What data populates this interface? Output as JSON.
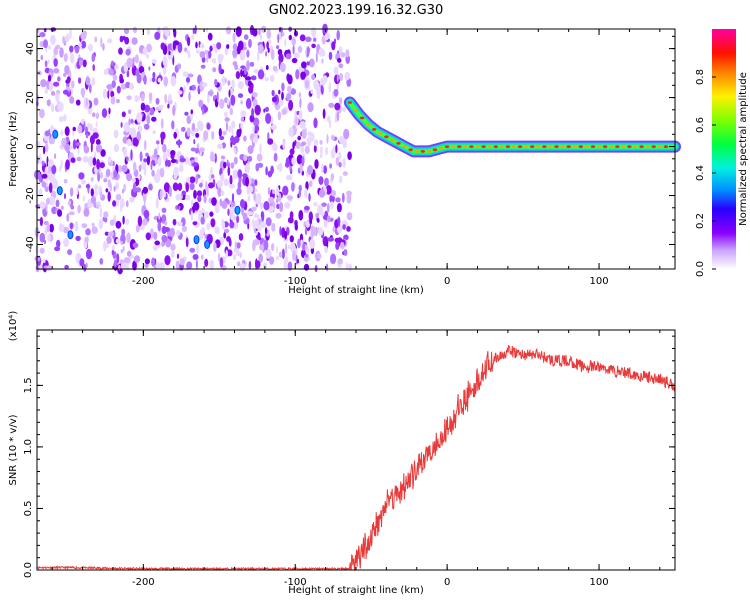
{
  "figure_title": "GN02.2023.199.16.32.G30",
  "chart_data": [
    {
      "type": "heatmap",
      "title": "GN02.2023.199.16.32.G30",
      "xlabel": "Height of straight line (km)",
      "ylabel": "Frequency (Hz)",
      "xlim": [
        -270,
        150
      ],
      "ylim": [
        -50,
        48
      ],
      "x_ticks": [
        -200,
        -100,
        0,
        100
      ],
      "y_ticks": [
        -40,
        -20,
        0,
        20,
        40
      ],
      "colorbar": {
        "label": "Normalized spectral amplitude",
        "range": [
          0,
          1
        ],
        "ticks": [
          0.0,
          0.2,
          0.4,
          0.6,
          0.8
        ]
      },
      "noise_region_x": [
        -270,
        -64
      ],
      "signal_track": {
        "x": [
          -64,
          -58,
          -52,
          -46,
          -40,
          -34,
          -28,
          -22,
          -18,
          -12,
          -6,
          0,
          20,
          40,
          60,
          80,
          100,
          120,
          150
        ],
        "y": [
          18,
          13,
          9,
          6,
          4,
          2,
          0,
          -2,
          -2,
          -2,
          -1,
          0,
          0,
          0,
          0,
          0,
          0,
          0,
          0
        ]
      },
      "grid": false
    },
    {
      "type": "line",
      "xlabel": "Height of straight line (km)",
      "ylabel": "SNR (10 * v/v)",
      "y_multiplier": "(x10⁴)",
      "xlim": [
        -270,
        150
      ],
      "ylim": [
        0,
        1.95
      ],
      "x_ticks": [
        -200,
        -100,
        0,
        100
      ],
      "y_ticks": [
        "0.0",
        "0.5",
        "1.0",
        "1.5"
      ],
      "series": [
        {
          "color": "#e83a3a",
          "x": [
            -270,
            -250,
            -200,
            -150,
            -100,
            -64,
            -55,
            -45,
            -40,
            -30,
            -20,
            -10,
            0,
            10,
            20,
            30,
            40,
            50,
            60,
            70,
            80,
            90,
            100,
            110,
            120,
            130,
            140,
            150
          ],
          "y": [
            0.02,
            0.02,
            0.01,
            0.01,
            0.01,
            0.01,
            0.15,
            0.4,
            0.55,
            0.65,
            0.8,
            1.0,
            1.15,
            1.35,
            1.55,
            1.7,
            1.78,
            1.75,
            1.75,
            1.7,
            1.7,
            1.65,
            1.65,
            1.62,
            1.6,
            1.57,
            1.55,
            1.5
          ]
        }
      ],
      "grid": false
    }
  ]
}
